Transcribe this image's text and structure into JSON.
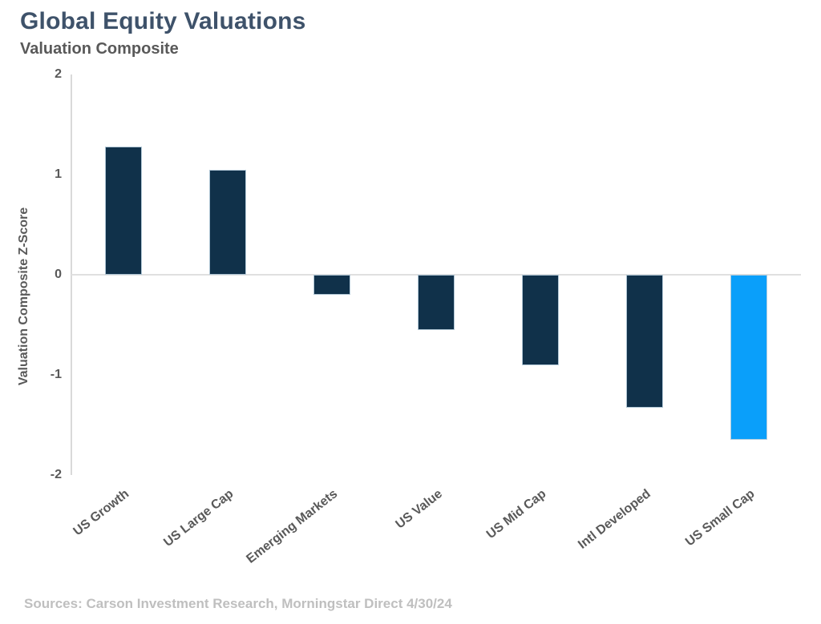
{
  "header": {
    "title": "Global Equity Valuations",
    "subtitle": "Valuation Composite"
  },
  "footer": {
    "sources": "Sources: Carson Investment Research, Morningstar Direct 4/30/24"
  },
  "colors": {
    "title_text": "#3E526A",
    "subtitle_text": "#595959",
    "axis_text": "#595959",
    "axis_line": "#D9D9D9",
    "zero_gridline": "#E0E0E0",
    "bar_navy": "#10314A",
    "bar_highlight_blue": "#0A9FFA",
    "bar_border": "#B9CFDC",
    "sources_text": "#BFBFBF",
    "background": "#FFFFFF"
  },
  "chart_data": {
    "type": "bar",
    "title": "Global Equity Valuations",
    "subtitle": "Valuation Composite",
    "categories": [
      "US Growth",
      "US Large Cap",
      "Emerging Markets",
      "US Value",
      "US Mid Cap",
      "Intl Developed",
      "US Small Cap"
    ],
    "values": [
      1.28,
      1.05,
      -0.2,
      -0.55,
      -0.9,
      -1.33,
      -1.65
    ],
    "bar_colors": [
      "#10314A",
      "#10314A",
      "#10314A",
      "#10314A",
      "#10314A",
      "#10314A",
      "#0A9FFA"
    ],
    "highlighted_category": "US Small Cap",
    "xlabel": "",
    "ylabel": "Valuation Composite Z-Score",
    "ylim": [
      -2,
      2
    ],
    "y_ticks": [
      2,
      1,
      0,
      -1,
      -2
    ],
    "grid": "zero-line-only",
    "legend": "none",
    "x_label_rotation_deg": -38
  }
}
